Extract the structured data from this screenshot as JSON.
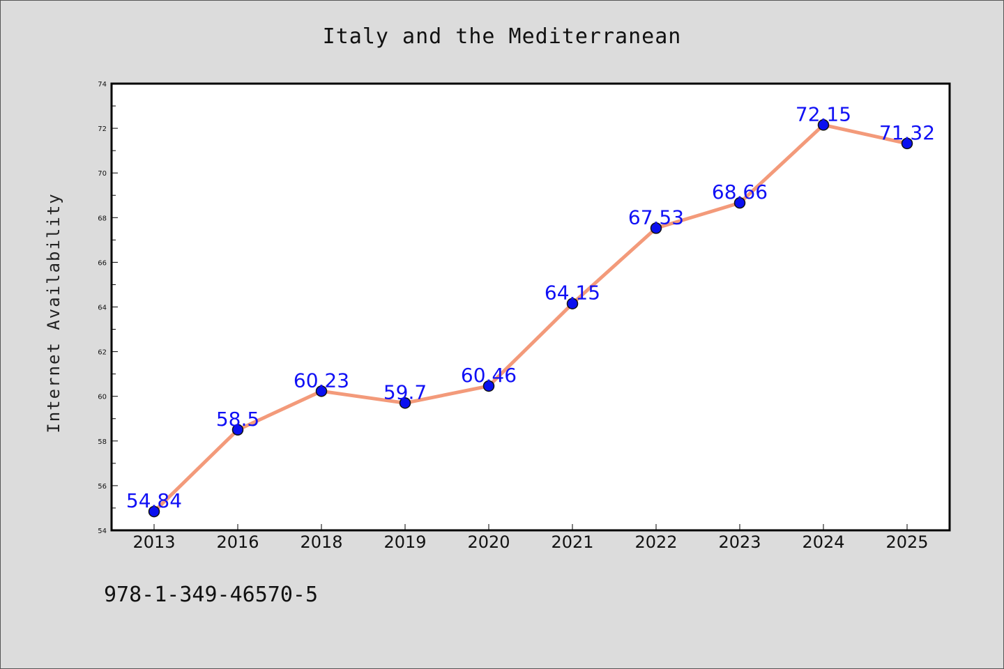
{
  "title": "Italy and the Mediterranean",
  "footnote": "978-1-349-46570-5",
  "colors": {
    "background": "#dcdcdc",
    "plot_background": "#ffffff",
    "line": "#f39a7a",
    "marker": "#0a10f0",
    "label": "#1010f5"
  },
  "chart_data": {
    "type": "line",
    "title": "Italy and the Mediterranean",
    "xlabel": "",
    "ylabel": "Internet Availability",
    "categories": [
      "2013",
      "2016",
      "2018",
      "2019",
      "2020",
      "2021",
      "2022",
      "2023",
      "2024",
      "2025"
    ],
    "series": [
      {
        "values": [
          54.84,
          58.5,
          60.23,
          59.7,
          60.46,
          64.15,
          67.53,
          68.66,
          72.15,
          71.32
        ]
      }
    ],
    "data_labels": [
      "54.84",
      "58.5",
      "60.23",
      "59.7",
      "60.46",
      "64.15",
      "67.53",
      "68.66",
      "72.15",
      "71.32"
    ],
    "yticks": [
      54,
      56,
      58,
      60,
      62,
      64,
      66,
      68,
      70,
      72,
      74
    ],
    "ylim": [
      54,
      74
    ],
    "grid": false,
    "legend": "none"
  }
}
